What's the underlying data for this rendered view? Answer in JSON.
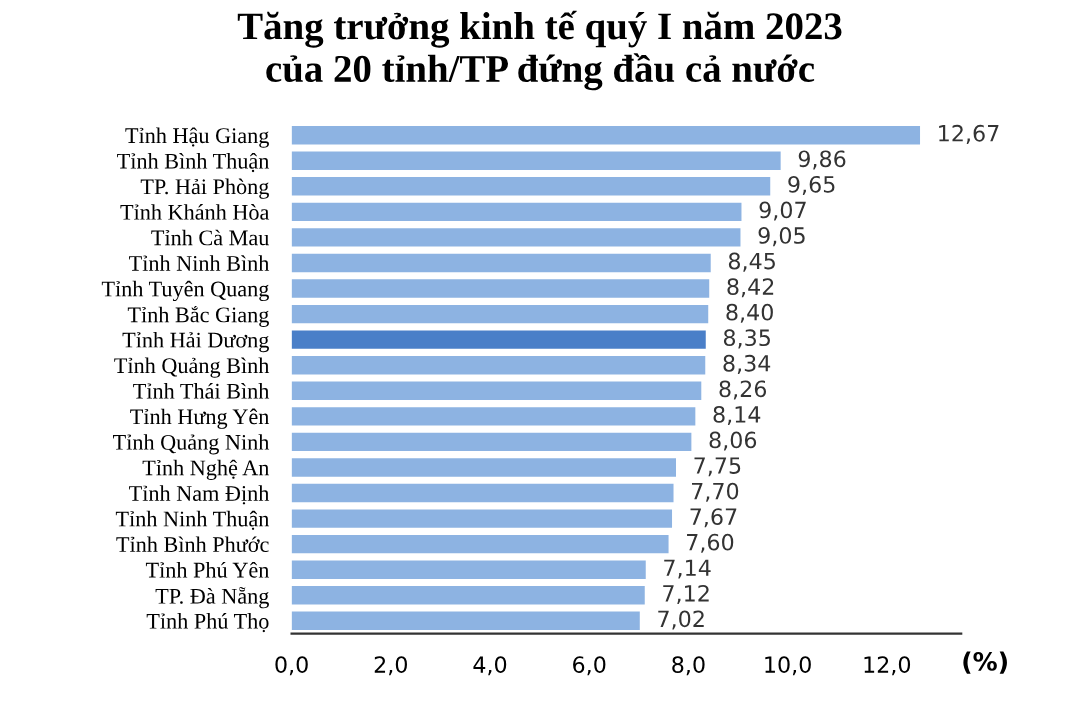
{
  "chart_data": {
    "type": "bar",
    "orientation": "horizontal",
    "title": "Tăng trưởng kinh tế quý I năm 2023\ncủa 20 tỉnh/TP đứng đầu cả nước",
    "xlabel": "(%)",
    "categories": [
      "Tỉnh Hậu Giang",
      "Tỉnh Bình Thuận",
      "TP. Hải Phòng",
      "Tỉnh Khánh Hòa",
      "Tỉnh Cà Mau",
      "Tỉnh Ninh Bình",
      "Tỉnh Tuyên Quang",
      "Tỉnh Bắc Giang",
      "Tỉnh Hải Dương",
      "Tỉnh Quảng Bình",
      "Tỉnh Thái Bình",
      "Tỉnh Hưng Yên",
      "Tỉnh Quảng Ninh",
      "Tỉnh Nghệ An",
      "Tỉnh Nam Định",
      "Tỉnh Ninh Thuận",
      "Tỉnh Bình Phước",
      "Tỉnh Phú Yên",
      "TP. Đà Nẵng",
      "Tỉnh Phú Thọ"
    ],
    "values": [
      12.67,
      9.86,
      9.65,
      9.07,
      9.05,
      8.45,
      8.42,
      8.4,
      8.35,
      8.34,
      8.26,
      8.14,
      8.06,
      7.75,
      7.7,
      7.67,
      7.6,
      7.14,
      7.12,
      7.02
    ],
    "value_labels": [
      "12,67",
      "9,86",
      "9,65",
      "9,07",
      "9,05",
      "8,45",
      "8,42",
      "8,40",
      "8,35",
      "8,34",
      "8,26",
      "8,14",
      "8,06",
      "7,75",
      "7,70",
      "7,67",
      "7,60",
      "7,14",
      "7,12",
      "7,02"
    ],
    "colors": [
      "#8db3e2",
      "#8db3e2",
      "#8db3e2",
      "#8db3e2",
      "#8db3e2",
      "#8db3e2",
      "#8db3e2",
      "#8db3e2",
      "#4a7fc8",
      "#8db3e2",
      "#8db3e2",
      "#8db3e2",
      "#8db3e2",
      "#8db3e2",
      "#8db3e2",
      "#8db3e2",
      "#8db3e2",
      "#8db3e2",
      "#8db3e2",
      "#8db3e2"
    ],
    "xlim": [
      0,
      13.5
    ],
    "xticks": [
      {
        "value": 0,
        "label": "0,0"
      },
      {
        "value": 2,
        "label": "2,0"
      },
      {
        "value": 4,
        "label": "4,0"
      },
      {
        "value": 6,
        "label": "6,0"
      },
      {
        "value": 8,
        "label": "8,0"
      },
      {
        "value": 10,
        "label": "10,0"
      },
      {
        "value": 12,
        "label": "12,0"
      }
    ],
    "grid": false
  }
}
